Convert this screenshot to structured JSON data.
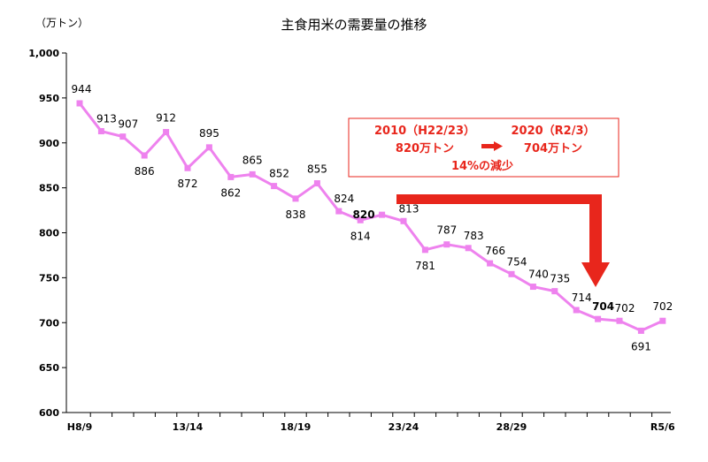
{
  "chart_data": {
    "type": "line",
    "title": "主食用米の需要量の推移",
    "unit_label": "（万トン）",
    "ylim": [
      600,
      1000
    ],
    "y_ticks": [
      "600",
      "650",
      "700",
      "750",
      "800",
      "850",
      "900",
      "950",
      "1,000"
    ],
    "x_tick_labels": [
      {
        "index": 0,
        "label": "H8/9"
      },
      {
        "index": 5,
        "label": "13/14"
      },
      {
        "index": 10,
        "label": "18/19"
      },
      {
        "index": 15,
        "label": "23/24"
      },
      {
        "index": 20,
        "label": "28/29"
      },
      {
        "index": 27,
        "label": "R5/6"
      }
    ],
    "line_color": "#ee82ee",
    "values": [
      944,
      913,
      907,
      886,
      912,
      872,
      895,
      862,
      865,
      852,
      838,
      855,
      824,
      814,
      820,
      813,
      781,
      787,
      783,
      766,
      754,
      740,
      735,
      714,
      704,
      702,
      691,
      702
    ],
    "data_labels": [
      "944",
      "913",
      "907",
      "886",
      "912",
      "872",
      "895",
      "862",
      "865",
      "852",
      "838",
      "855",
      "824",
      "814",
      "820",
      "813",
      "781",
      "787",
      "783",
      "766",
      "754",
      "740",
      "735",
      "714",
      "704",
      "702",
      "691",
      "702"
    ],
    "highlight_indices": [
      14,
      24
    ],
    "grid": false,
    "annotation": {
      "line1_left": "2010（H22/23）",
      "line1_right": "2020（R2/3）",
      "line2_left": "820万トン",
      "line2_right": "704万トン",
      "line3": "14%の減少",
      "color": "#e8261c"
    }
  }
}
